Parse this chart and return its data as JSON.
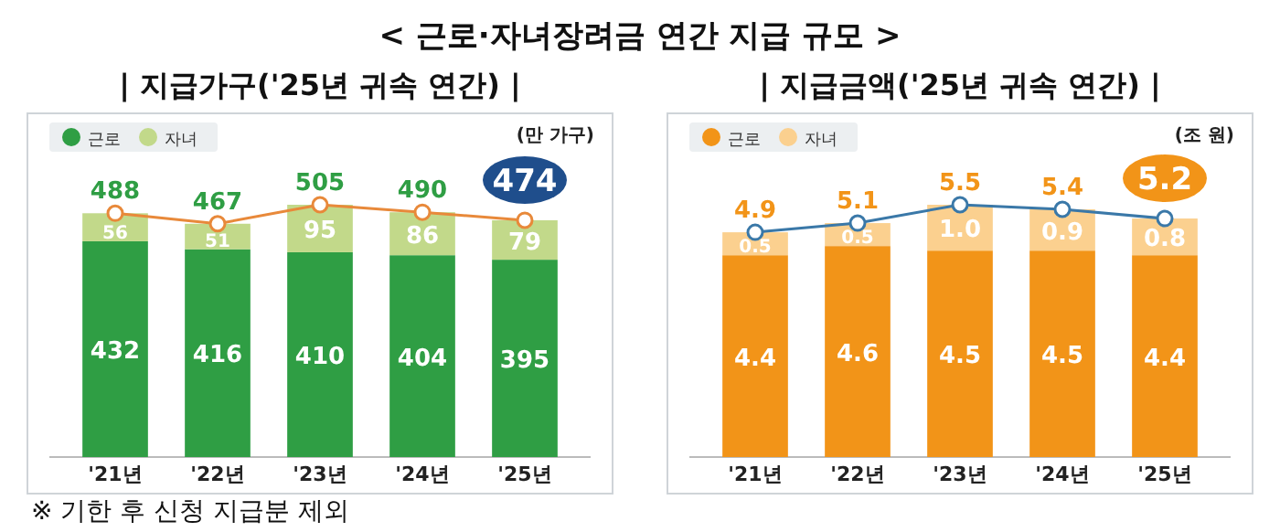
{
  "chart_data": [
    {
      "type": "bar",
      "stacked": true,
      "title": "| 지급가구('25년 귀속 연간) |",
      "ylabel": "(만 가구)",
      "legend": "top left",
      "marker": "circle",
      "annotations": [
        "< 근로·자녀장려금 연간 지급 규모 >",
        "※ 기한 후 신청 지급분 제외"
      ],
      "categories": [
        "'21년",
        "'22년",
        "'23년",
        "'24년",
        "'25년"
      ],
      "series": [
        {
          "name": "근로",
          "color": "#2f9e44",
          "values": [
            432,
            416,
            410,
            404,
            395
          ],
          "value_labels": [
            "432",
            "416",
            "410",
            "404",
            "395"
          ]
        },
        {
          "name": "자녀",
          "color": "#c2d98a",
          "values": [
            56,
            51,
            95,
            86,
            79
          ],
          "value_labels": [
            "56",
            "51",
            "95",
            "86",
            "79"
          ]
        },
        {
          "type": "line",
          "color": "#e8893a",
          "values": [
            488,
            467,
            505,
            490,
            474
          ],
          "value_labels": [
            "488",
            "467",
            "505",
            "490",
            "474"
          ]
        }
      ]
    },
    {
      "type": "bar",
      "stacked": true,
      "title": "| 지급금액('25년 귀속 연간) |",
      "ylabel": "(조 원)",
      "legend": "top left",
      "marker": "circle",
      "categories": [
        "'21년",
        "'22년",
        "'23년",
        "'24년",
        "'25년"
      ],
      "series": [
        {
          "name": "근로",
          "color": "#f29418",
          "values": [
            4.4,
            4.6,
            4.5,
            4.5,
            4.4
          ],
          "value_labels": [
            "4.4",
            "4.6",
            "4.5",
            "4.5",
            "4.4"
          ]
        },
        {
          "name": "자녀",
          "color": "#fbd08f",
          "values": [
            0.5,
            0.5,
            1.0,
            0.9,
            0.8
          ],
          "value_labels": [
            "0.5",
            "0.5",
            "1.0",
            "0.9",
            "0.8"
          ]
        },
        {
          "type": "line",
          "color": "#3a78a8",
          "values": [
            4.9,
            5.1,
            5.5,
            5.4,
            5.2
          ],
          "value_labels": [
            "4.9",
            "5.1",
            "5.5",
            "5.4",
            "5.2"
          ]
        }
      ]
    }
  ]
}
